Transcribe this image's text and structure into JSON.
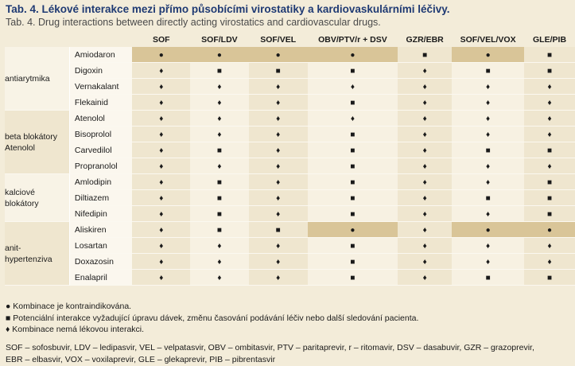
{
  "title": "Tab. 4. Lékové interakce mezi přímo působícími virostatiky a kardiovaskulárními léčivy.",
  "subtitle": "Tab. 4. Drug interactions between directly acting virostatics and cardiovascular drugs.",
  "columns": [
    "SOF",
    "SOF/LDV",
    "SOF/VEL",
    "OBV/PTV/r + DSV",
    "GZR/EBR",
    "SOF/VEL/VOX",
    "GLE/PIB"
  ],
  "symbols": {
    "C": "●",
    "P": "■",
    "N": "♦"
  },
  "groups": [
    {
      "label": "antiarytmika",
      "drugs": [
        {
          "name": "Amiodaron",
          "cells": [
            "C",
            "C",
            "C",
            "C",
            "P",
            "C",
            "P"
          ]
        },
        {
          "name": "Digoxin",
          "cells": [
            "N",
            "P",
            "P",
            "P",
            "N",
            "P",
            "P"
          ]
        },
        {
          "name": "Vernakalant",
          "cells": [
            "N",
            "N",
            "N",
            "N",
            "N",
            "N",
            "N"
          ]
        },
        {
          "name": "Flekainid",
          "cells": [
            "N",
            "N",
            "N",
            "P",
            "N",
            "N",
            "N"
          ]
        }
      ]
    },
    {
      "label": "beta blokátory Atenolol",
      "drugs": [
        {
          "name": "Atenolol",
          "cells": [
            "N",
            "N",
            "N",
            "N",
            "N",
            "N",
            "N"
          ]
        },
        {
          "name": "Bisoprolol",
          "cells": [
            "N",
            "N",
            "N",
            "P",
            "N",
            "N",
            "N"
          ]
        },
        {
          "name": "Carvedilol",
          "cells": [
            "N",
            "P",
            "N",
            "P",
            "N",
            "P",
            "P"
          ]
        },
        {
          "name": "Propranolol",
          "cells": [
            "N",
            "N",
            "N",
            "P",
            "N",
            "N",
            "N"
          ]
        }
      ]
    },
    {
      "label": "kalciové blokátory",
      "drugs": [
        {
          "name": "Amlodipin",
          "cells": [
            "N",
            "P",
            "N",
            "P",
            "N",
            "N",
            "P"
          ]
        },
        {
          "name": "Diltiazem",
          "cells": [
            "N",
            "P",
            "N",
            "P",
            "N",
            "P",
            "P"
          ]
        },
        {
          "name": "Nifedipin",
          "cells": [
            "N",
            "P",
            "N",
            "P",
            "N",
            "N",
            "P"
          ]
        }
      ]
    },
    {
      "label": "anit- hypertenziva",
      "drugs": [
        {
          "name": "Aliskiren",
          "cells": [
            "N",
            "P",
            "P",
            "C",
            "N",
            "C",
            "C"
          ]
        },
        {
          "name": "Losartan",
          "cells": [
            "N",
            "N",
            "N",
            "P",
            "N",
            "N",
            "N"
          ]
        },
        {
          "name": "Doxazosin",
          "cells": [
            "N",
            "N",
            "N",
            "P",
            "N",
            "N",
            "N"
          ]
        },
        {
          "name": "Enalapril",
          "cells": [
            "N",
            "N",
            "N",
            "P",
            "N",
            "P",
            "P"
          ]
        }
      ]
    }
  ],
  "legend": [
    "● Kombinace je kontraindikována.",
    "■ Potenciální interakce vyžadující úpravu dávek, změnu časování podávání léčiv nebo další sledování pacienta.",
    "♦ Kombinace nemá lékovou interakci."
  ],
  "abbreviations": [
    "SOF – sofosbuvir, LDV – ledipasvir, VEL – velpatasvir, OBV – ombitasvir, PTV – paritaprevir, r – ritomavir, DSV – dasabuvir, GZR – grazoprevir,",
    "EBR – elbasvir, VOX – voxilaprevir, GLE – glekaprevir, PIB – pibrentasvir"
  ],
  "colors": {
    "contraindicated_bg": "#d9c598",
    "light_bg": "#f7f1e2",
    "alt_bg": "#efe6cf",
    "title": "#1f3a73"
  }
}
